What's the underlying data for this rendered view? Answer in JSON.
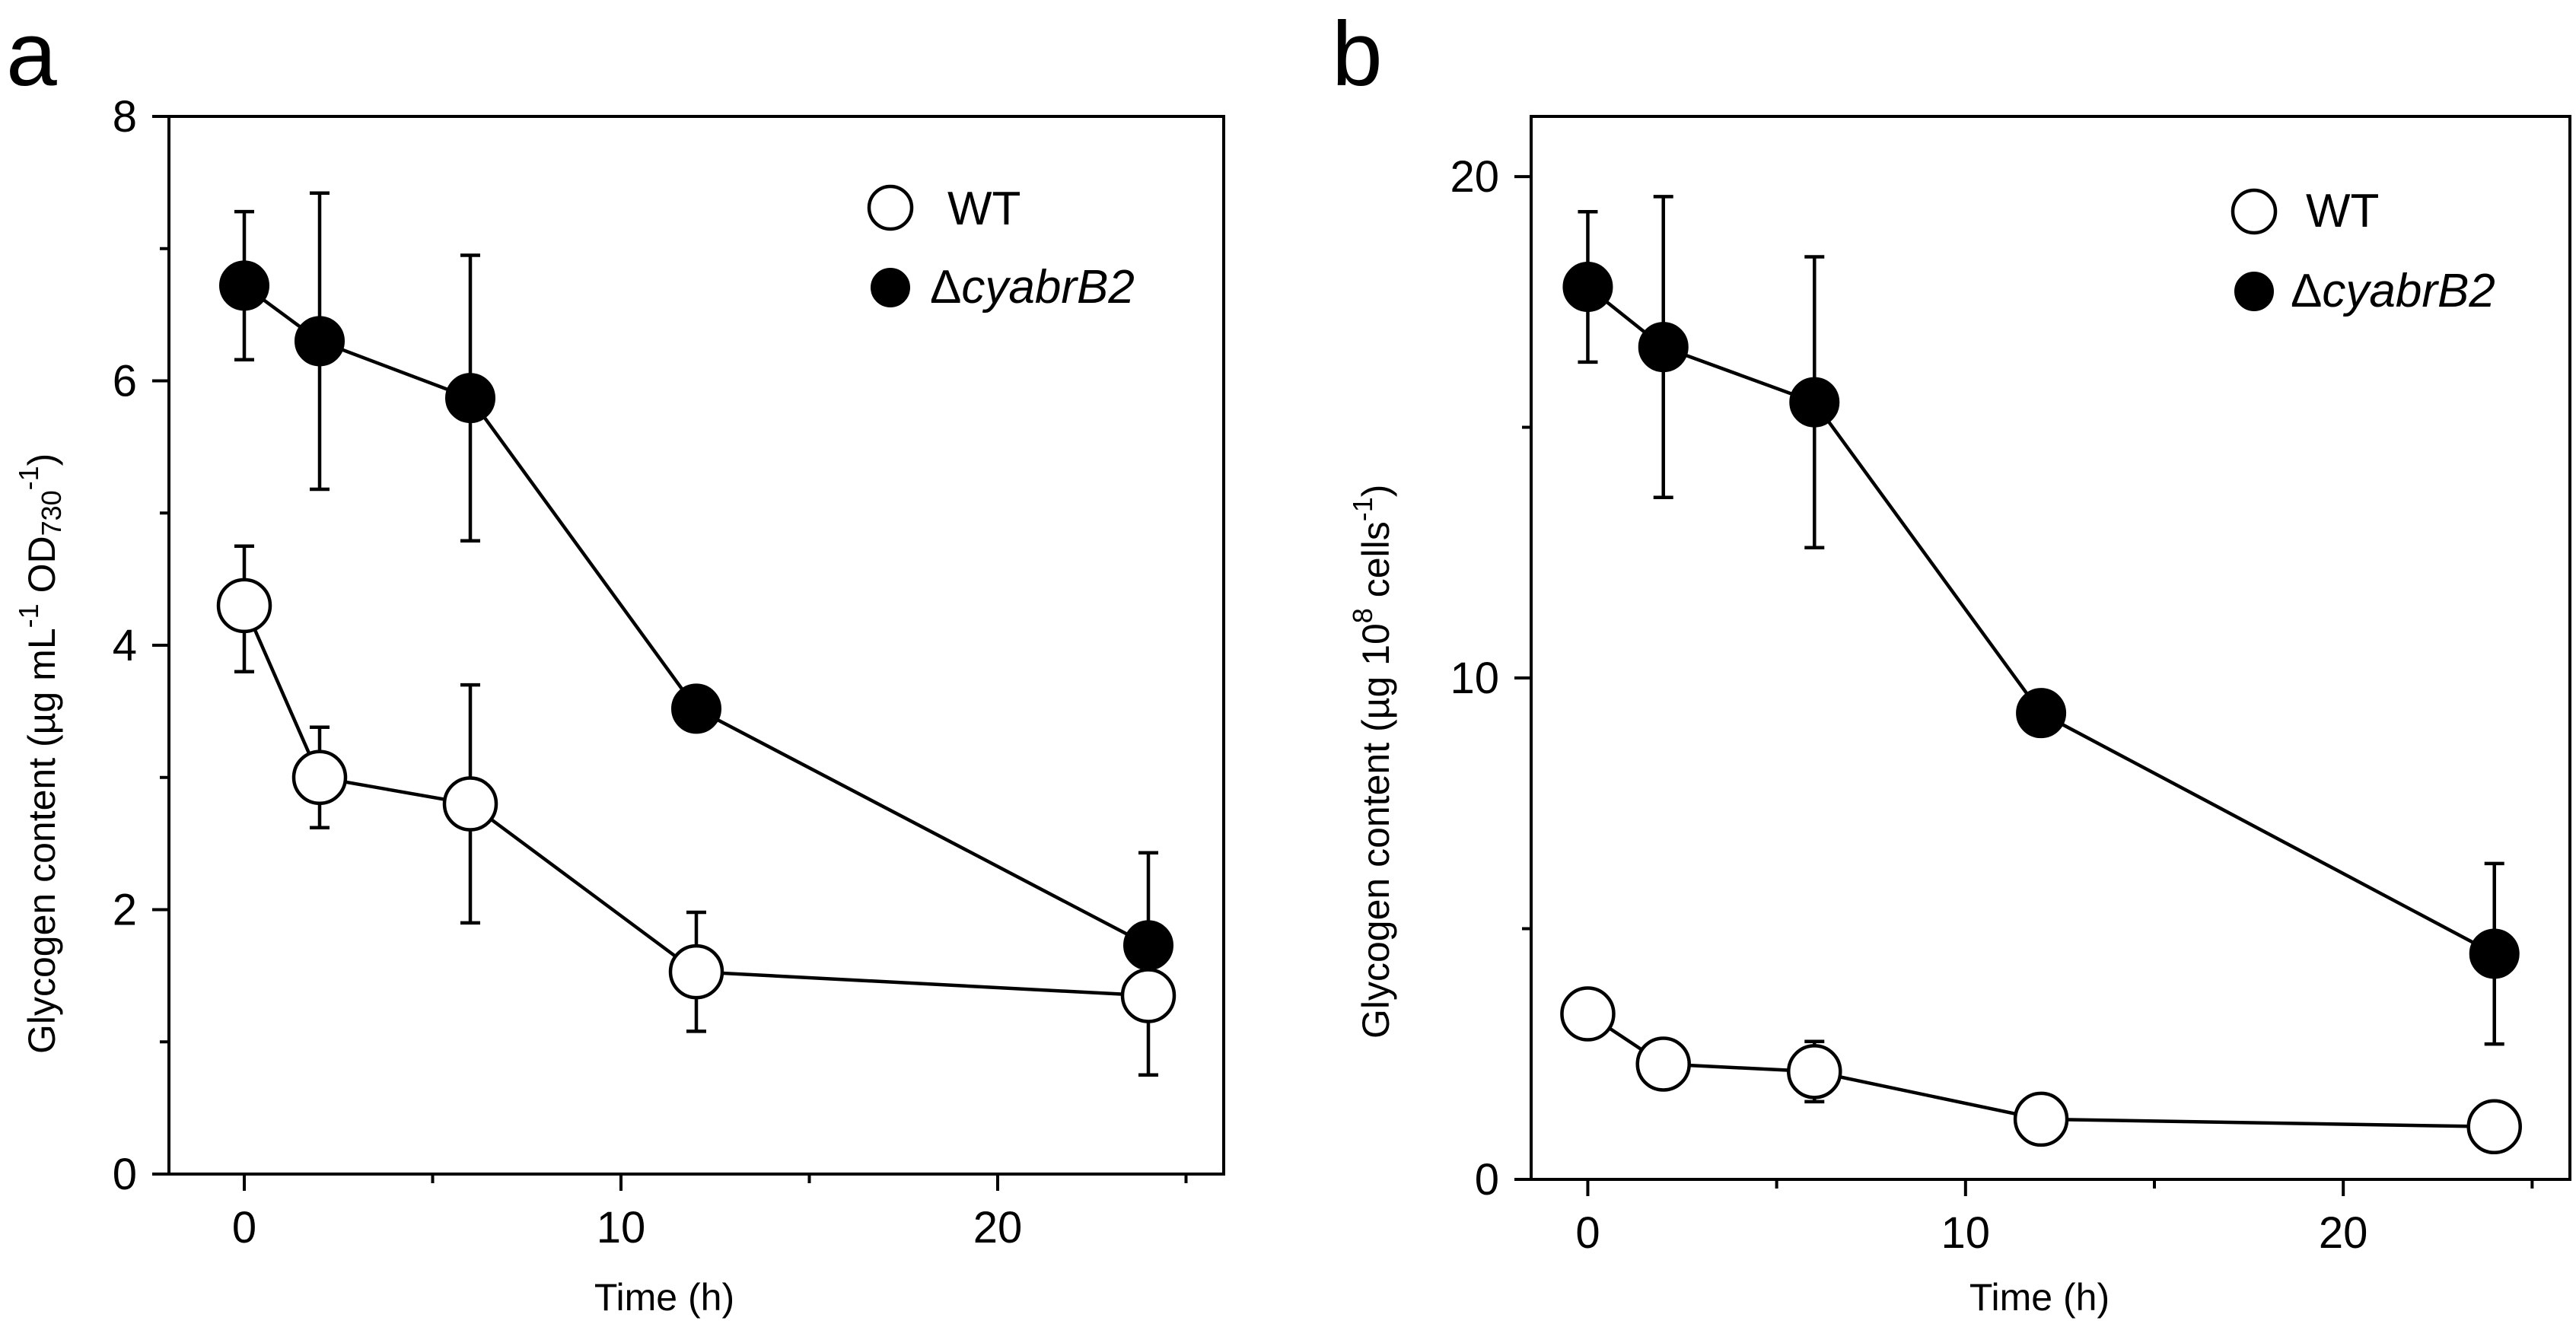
{
  "chart_data": [
    {
      "type": "line",
      "panel_label": "a",
      "xlabel": "Time (h)",
      "ylabel_main": "Glycogen content (µg mL",
      "ylabel_sup1": "-1",
      "ylabel_mid": " OD",
      "ylabel_sub": "730",
      "ylabel_sup2": "-1",
      "ylabel_end": ")",
      "xlim": [
        -2,
        26
      ],
      "ylim": [
        0,
        8
      ],
      "xticks_major": [
        0,
        10,
        20
      ],
      "xticks_minor": [
        5,
        15,
        25
      ],
      "yticks_major": [
        0,
        2,
        4,
        6,
        8
      ],
      "yticks_minor": [
        1,
        3,
        5,
        7
      ],
      "x": [
        0,
        2,
        6,
        12,
        24
      ],
      "legend_position": "top-right",
      "series": [
        {
          "name": "WT",
          "marker": "open-circle",
          "values": [
            4.3,
            3.0,
            2.8,
            1.53,
            1.35
          ],
          "err_up": [
            0.45,
            0.38,
            0.9,
            0.45,
            0.0
          ],
          "err_down": [
            0.5,
            0.38,
            0.9,
            0.45,
            0.6
          ]
        },
        {
          "name_prefix": "Δ",
          "name_italic": "cyabrB2",
          "marker": "filled-circle",
          "values": [
            6.72,
            6.3,
            5.87,
            3.52,
            1.73
          ],
          "err_up": [
            0.56,
            1.12,
            1.08,
            0.0,
            0.7
          ],
          "err_down": [
            0.56,
            1.12,
            1.08,
            0.0,
            0.0
          ]
        }
      ]
    },
    {
      "type": "line",
      "panel_label": "b",
      "xlabel": "Time (h)",
      "ylabel_main": "Glycogen content (µg 10",
      "ylabel_sup1": "8",
      "ylabel_mid": " cells",
      "ylabel_sup2": "-1",
      "ylabel_end": ")",
      "xlim": [
        -1.5,
        26
      ],
      "ylim": [
        0,
        21.2
      ],
      "xticks_major": [
        0,
        10,
        20
      ],
      "xticks_minor": [
        5,
        15,
        25
      ],
      "yticks_major": [
        0,
        10,
        20
      ],
      "yticks_minor": [
        5,
        15
      ],
      "x": [
        0,
        2,
        6,
        12,
        24
      ],
      "legend_position": "top-right",
      "series": [
        {
          "name": "WT",
          "marker": "open-circle",
          "values": [
            3.3,
            2.3,
            2.15,
            1.2,
            1.05
          ],
          "err_up": [
            0.0,
            0.0,
            0.6,
            0.0,
            0.0
          ],
          "err_down": [
            0.0,
            0.0,
            0.6,
            0.0,
            0.0
          ]
        },
        {
          "name_prefix": "Δ",
          "name_italic": "cyabrB2",
          "marker": "filled-circle",
          "values": [
            17.8,
            16.6,
            15.5,
            9.3,
            4.5
          ],
          "err_up": [
            1.5,
            3.0,
            2.9,
            0.0,
            1.8
          ],
          "err_down": [
            1.5,
            3.0,
            2.9,
            0.0,
            1.8
          ]
        }
      ]
    }
  ]
}
